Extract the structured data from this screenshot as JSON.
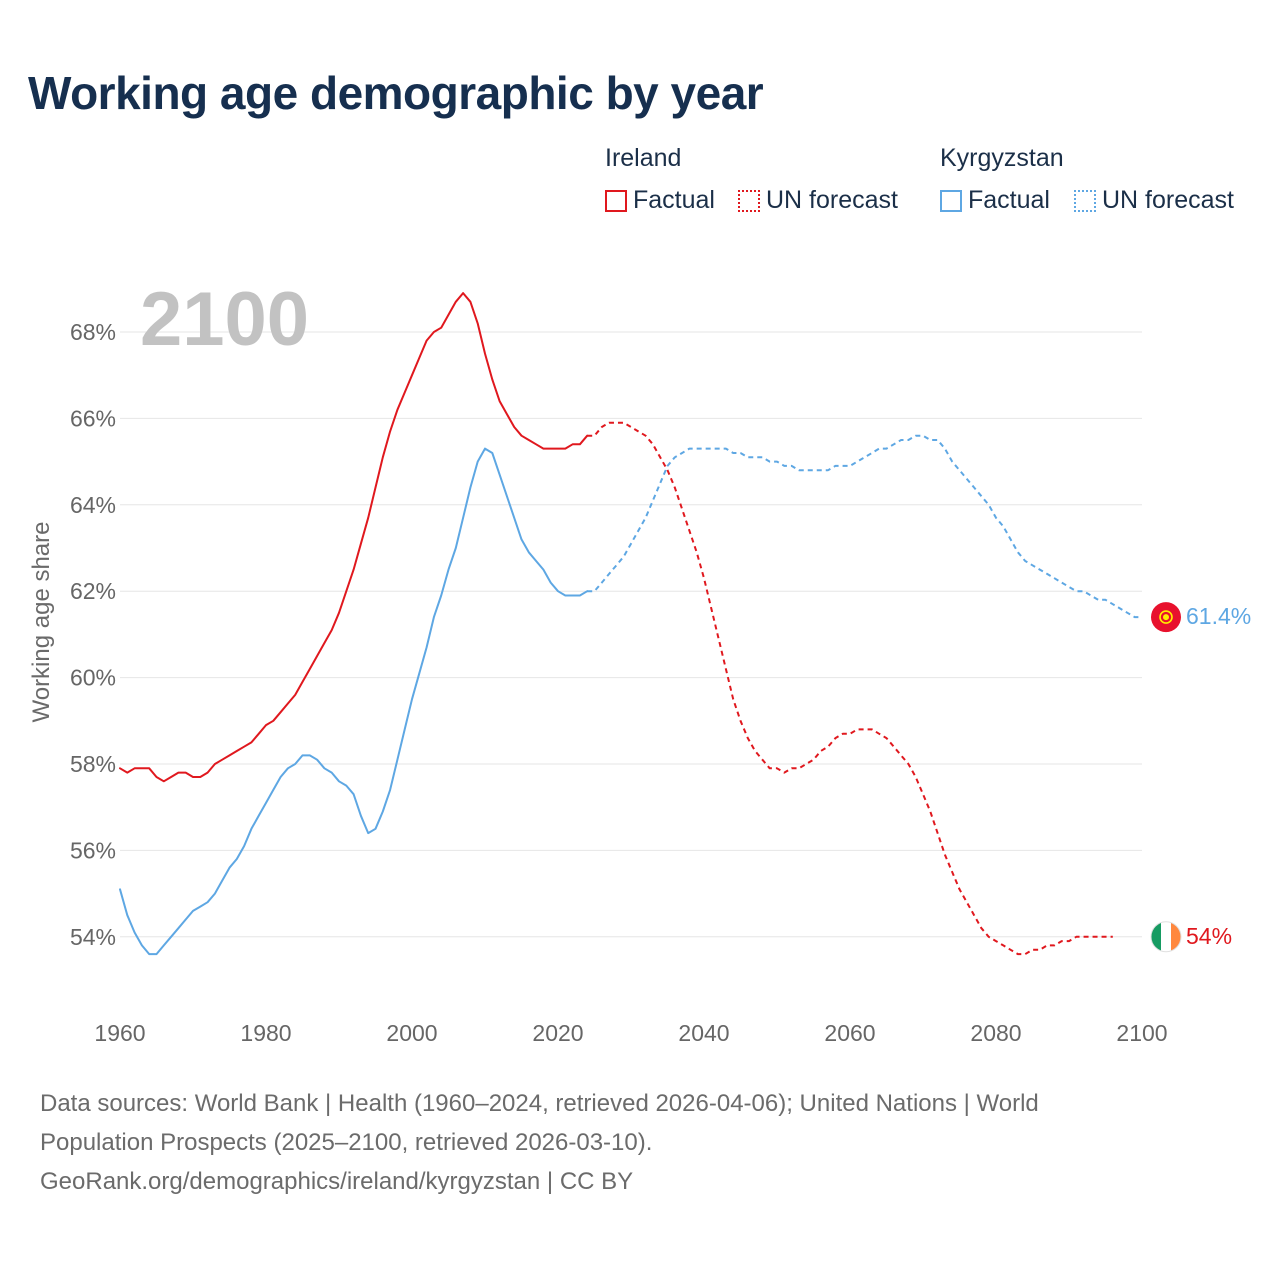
{
  "page": {
    "title": "Working age demographic by year",
    "current_year": "2100",
    "source_line1": "Data sources: World Bank | Health (1960–2024, retrieved 2026-04-06); United Nations | World",
    "source_line2": "Population Prospects (2025–2100, retrieved 2026-03-10).",
    "source_line3": "GeoRank.org/demographics/ireland/kyrgyzstan | CC BY"
  },
  "legend": {
    "ireland": {
      "name": "Ireland",
      "factual": "Factual",
      "forecast": "UN forecast"
    },
    "kyrgyzstan": {
      "name": "Kyrgyzstan",
      "factual": "Factual",
      "forecast": "UN forecast"
    }
  },
  "colors": {
    "ireland": "#e0181e",
    "kyrgyzstan": "#5ea7e3",
    "grid": "#e6e6e6",
    "tick": "#666666"
  },
  "end_labels": {
    "kyrgyzstan": "61.4%",
    "ireland": "54%"
  },
  "chart_data": {
    "type": "line",
    "title": "Working age demographic by year",
    "xlabel": "",
    "ylabel": "Working age share",
    "xlim": [
      1960,
      2100
    ],
    "ylim": [
      53,
      69.5
    ],
    "x_ticks": [
      1960,
      1980,
      2000,
      2020,
      2040,
      2060,
      2080,
      2100
    ],
    "x_tick_labels": [
      "1960",
      "1980",
      "2000",
      "2020",
      "2040",
      "2060",
      "2080",
      "2100"
    ],
    "y_ticks": [
      54,
      56,
      58,
      60,
      62,
      64,
      66,
      68
    ],
    "y_tick_labels": [
      "54%",
      "56%",
      "58%",
      "60%",
      "62%",
      "64%",
      "66%",
      "68%"
    ],
    "grid": true,
    "legend_position": "top-right",
    "series": [
      {
        "name": "Ireland",
        "segment": "Factual",
        "style": "solid",
        "points": [
          [
            1960,
            57.9
          ],
          [
            1961,
            57.8
          ],
          [
            1962,
            57.9
          ],
          [
            1963,
            57.9
          ],
          [
            1964,
            57.9
          ],
          [
            1965,
            57.7
          ],
          [
            1966,
            57.6
          ],
          [
            1967,
            57.7
          ],
          [
            1968,
            57.8
          ],
          [
            1969,
            57.8
          ],
          [
            1970,
            57.7
          ],
          [
            1971,
            57.7
          ],
          [
            1972,
            57.8
          ],
          [
            1973,
            58.0
          ],
          [
            1974,
            58.1
          ],
          [
            1975,
            58.2
          ],
          [
            1976,
            58.3
          ],
          [
            1977,
            58.4
          ],
          [
            1978,
            58.5
          ],
          [
            1979,
            58.7
          ],
          [
            1980,
            58.9
          ],
          [
            1981,
            59.0
          ],
          [
            1982,
            59.2
          ],
          [
            1983,
            59.4
          ],
          [
            1984,
            59.6
          ],
          [
            1985,
            59.9
          ],
          [
            1986,
            60.2
          ],
          [
            1987,
            60.5
          ],
          [
            1988,
            60.8
          ],
          [
            1989,
            61.1
          ],
          [
            1990,
            61.5
          ],
          [
            1991,
            62.0
          ],
          [
            1992,
            62.5
          ],
          [
            1993,
            63.1
          ],
          [
            1994,
            63.7
          ],
          [
            1995,
            64.4
          ],
          [
            1996,
            65.1
          ],
          [
            1997,
            65.7
          ],
          [
            1998,
            66.2
          ],
          [
            1999,
            66.6
          ],
          [
            2000,
            67.0
          ],
          [
            2001,
            67.4
          ],
          [
            2002,
            67.8
          ],
          [
            2003,
            68.0
          ],
          [
            2004,
            68.1
          ],
          [
            2005,
            68.4
          ],
          [
            2006,
            68.7
          ],
          [
            2007,
            68.9
          ],
          [
            2008,
            68.7
          ],
          [
            2009,
            68.2
          ],
          [
            2010,
            67.5
          ],
          [
            2011,
            66.9
          ],
          [
            2012,
            66.4
          ],
          [
            2013,
            66.1
          ],
          [
            2014,
            65.8
          ],
          [
            2015,
            65.6
          ],
          [
            2016,
            65.5
          ],
          [
            2017,
            65.4
          ],
          [
            2018,
            65.3
          ],
          [
            2019,
            65.3
          ],
          [
            2020,
            65.3
          ],
          [
            2021,
            65.3
          ],
          [
            2022,
            65.4
          ],
          [
            2023,
            65.4
          ],
          [
            2024,
            65.6
          ]
        ]
      },
      {
        "name": "Ireland",
        "segment": "UN forecast",
        "style": "dashed",
        "points": [
          [
            2024,
            65.6
          ],
          [
            2025,
            65.6
          ],
          [
            2026,
            65.8
          ],
          [
            2027,
            65.9
          ],
          [
            2028,
            65.9
          ],
          [
            2029,
            65.9
          ],
          [
            2030,
            65.8
          ],
          [
            2031,
            65.7
          ],
          [
            2032,
            65.6
          ],
          [
            2033,
            65.4
          ],
          [
            2034,
            65.1
          ],
          [
            2035,
            64.8
          ],
          [
            2036,
            64.4
          ],
          [
            2037,
            63.9
          ],
          [
            2038,
            63.4
          ],
          [
            2039,
            62.9
          ],
          [
            2040,
            62.3
          ],
          [
            2041,
            61.6
          ],
          [
            2042,
            60.9
          ],
          [
            2043,
            60.2
          ],
          [
            2044,
            59.5
          ],
          [
            2045,
            59.0
          ],
          [
            2046,
            58.6
          ],
          [
            2047,
            58.3
          ],
          [
            2048,
            58.1
          ],
          [
            2049,
            57.9
          ],
          [
            2050,
            57.9
          ],
          [
            2051,
            57.8
          ],
          [
            2052,
            57.9
          ],
          [
            2053,
            57.9
          ],
          [
            2054,
            58.0
          ],
          [
            2055,
            58.1
          ],
          [
            2056,
            58.3
          ],
          [
            2057,
            58.4
          ],
          [
            2058,
            58.6
          ],
          [
            2059,
            58.7
          ],
          [
            2060,
            58.7
          ],
          [
            2061,
            58.8
          ],
          [
            2062,
            58.8
          ],
          [
            2063,
            58.8
          ],
          [
            2064,
            58.7
          ],
          [
            2065,
            58.6
          ],
          [
            2066,
            58.4
          ],
          [
            2067,
            58.2
          ],
          [
            2068,
            58.0
          ],
          [
            2069,
            57.7
          ],
          [
            2070,
            57.3
          ],
          [
            2071,
            56.9
          ],
          [
            2072,
            56.4
          ],
          [
            2073,
            55.9
          ],
          [
            2074,
            55.5
          ],
          [
            2075,
            55.1
          ],
          [
            2076,
            54.8
          ],
          [
            2077,
            54.5
          ],
          [
            2078,
            54.2
          ],
          [
            2079,
            54.0
          ],
          [
            2080,
            53.9
          ],
          [
            2081,
            53.8
          ],
          [
            2082,
            53.7
          ],
          [
            2083,
            53.6
          ],
          [
            2084,
            53.6
          ],
          [
            2085,
            53.7
          ],
          [
            2086,
            53.7
          ],
          [
            2087,
            53.8
          ],
          [
            2088,
            53.8
          ],
          [
            2089,
            53.9
          ],
          [
            2090,
            53.9
          ],
          [
            2091,
            54.0
          ],
          [
            2092,
            54.0
          ],
          [
            2093,
            54.0
          ],
          [
            2094,
            54.0
          ],
          [
            2095,
            54.0
          ],
          [
            2096,
            54.0
          ]
        ]
      },
      {
        "name": "Kyrgyzstan",
        "segment": "Factual",
        "style": "solid",
        "points": [
          [
            1960,
            55.1
          ],
          [
            1961,
            54.5
          ],
          [
            1962,
            54.1
          ],
          [
            1963,
            53.8
          ],
          [
            1964,
            53.6
          ],
          [
            1965,
            53.6
          ],
          [
            1966,
            53.8
          ],
          [
            1967,
            54.0
          ],
          [
            1968,
            54.2
          ],
          [
            1969,
            54.4
          ],
          [
            1970,
            54.6
          ],
          [
            1971,
            54.7
          ],
          [
            1972,
            54.8
          ],
          [
            1973,
            55.0
          ],
          [
            1974,
            55.3
          ],
          [
            1975,
            55.6
          ],
          [
            1976,
            55.8
          ],
          [
            1977,
            56.1
          ],
          [
            1978,
            56.5
          ],
          [
            1979,
            56.8
          ],
          [
            1980,
            57.1
          ],
          [
            1981,
            57.4
          ],
          [
            1982,
            57.7
          ],
          [
            1983,
            57.9
          ],
          [
            1984,
            58.0
          ],
          [
            1985,
            58.2
          ],
          [
            1986,
            58.2
          ],
          [
            1987,
            58.1
          ],
          [
            1988,
            57.9
          ],
          [
            1989,
            57.8
          ],
          [
            1990,
            57.6
          ],
          [
            1991,
            57.5
          ],
          [
            1992,
            57.3
          ],
          [
            1993,
            56.8
          ],
          [
            1994,
            56.4
          ],
          [
            1995,
            56.5
          ],
          [
            1996,
            56.9
          ],
          [
            1997,
            57.4
          ],
          [
            1998,
            58.1
          ],
          [
            1999,
            58.8
          ],
          [
            2000,
            59.5
          ],
          [
            2001,
            60.1
          ],
          [
            2002,
            60.7
          ],
          [
            2003,
            61.4
          ],
          [
            2004,
            61.9
          ],
          [
            2005,
            62.5
          ],
          [
            2006,
            63.0
          ],
          [
            2007,
            63.7
          ],
          [
            2008,
            64.4
          ],
          [
            2009,
            65.0
          ],
          [
            2010,
            65.3
          ],
          [
            2011,
            65.2
          ],
          [
            2012,
            64.7
          ],
          [
            2013,
            64.2
          ],
          [
            2014,
            63.7
          ],
          [
            2015,
            63.2
          ],
          [
            2016,
            62.9
          ],
          [
            2017,
            62.7
          ],
          [
            2018,
            62.5
          ],
          [
            2019,
            62.2
          ],
          [
            2020,
            62.0
          ],
          [
            2021,
            61.9
          ],
          [
            2022,
            61.9
          ],
          [
            2023,
            61.9
          ],
          [
            2024,
            62.0
          ]
        ]
      },
      {
        "name": "Kyrgyzstan",
        "segment": "UN forecast",
        "style": "dashed",
        "points": [
          [
            2024,
            62.0
          ],
          [
            2025,
            62.0
          ],
          [
            2026,
            62.2
          ],
          [
            2027,
            62.4
          ],
          [
            2028,
            62.6
          ],
          [
            2029,
            62.8
          ],
          [
            2030,
            63.1
          ],
          [
            2031,
            63.4
          ],
          [
            2032,
            63.7
          ],
          [
            2033,
            64.1
          ],
          [
            2034,
            64.5
          ],
          [
            2035,
            64.9
          ],
          [
            2036,
            65.1
          ],
          [
            2037,
            65.2
          ],
          [
            2038,
            65.3
          ],
          [
            2039,
            65.3
          ],
          [
            2040,
            65.3
          ],
          [
            2041,
            65.3
          ],
          [
            2042,
            65.3
          ],
          [
            2043,
            65.3
          ],
          [
            2044,
            65.2
          ],
          [
            2045,
            65.2
          ],
          [
            2046,
            65.1
          ],
          [
            2047,
            65.1
          ],
          [
            2048,
            65.1
          ],
          [
            2049,
            65.0
          ],
          [
            2050,
            65.0
          ],
          [
            2051,
            64.9
          ],
          [
            2052,
            64.9
          ],
          [
            2053,
            64.8
          ],
          [
            2054,
            64.8
          ],
          [
            2055,
            64.8
          ],
          [
            2056,
            64.8
          ],
          [
            2057,
            64.8
          ],
          [
            2058,
            64.9
          ],
          [
            2059,
            64.9
          ],
          [
            2060,
            64.9
          ],
          [
            2061,
            65.0
          ],
          [
            2062,
            65.1
          ],
          [
            2063,
            65.2
          ],
          [
            2064,
            65.3
          ],
          [
            2065,
            65.3
          ],
          [
            2066,
            65.4
          ],
          [
            2067,
            65.5
          ],
          [
            2068,
            65.5
          ],
          [
            2069,
            65.6
          ],
          [
            2070,
            65.6
          ],
          [
            2071,
            65.5
          ],
          [
            2072,
            65.5
          ],
          [
            2073,
            65.3
          ],
          [
            2074,
            65.0
          ],
          [
            2075,
            64.8
          ],
          [
            2076,
            64.6
          ],
          [
            2077,
            64.4
          ],
          [
            2078,
            64.2
          ],
          [
            2079,
            64.0
          ],
          [
            2080,
            63.7
          ],
          [
            2081,
            63.5
          ],
          [
            2082,
            63.2
          ],
          [
            2083,
            62.9
          ],
          [
            2084,
            62.7
          ],
          [
            2085,
            62.6
          ],
          [
            2086,
            62.5
          ],
          [
            2087,
            62.4
          ],
          [
            2088,
            62.3
          ],
          [
            2089,
            62.2
          ],
          [
            2090,
            62.1
          ],
          [
            2091,
            62.0
          ],
          [
            2092,
            62.0
          ],
          [
            2093,
            61.9
          ],
          [
            2094,
            61.8
          ],
          [
            2095,
            61.8
          ],
          [
            2096,
            61.7
          ],
          [
            2097,
            61.6
          ],
          [
            2098,
            61.5
          ],
          [
            2099,
            61.4
          ],
          [
            2100,
            61.4
          ]
        ]
      }
    ]
  }
}
